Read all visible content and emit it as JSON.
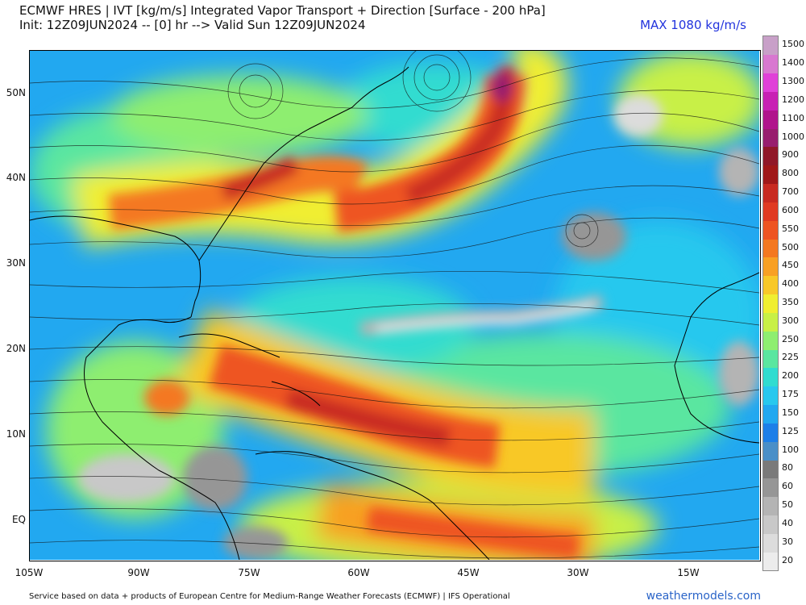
{
  "header": {
    "title_line1": "ECMWF HRES | IVT [kg/m/s] Integrated Vapor Transport + Direction [Surface - 200 hPa]",
    "title_line2": "Init: 12Z09JUN2024 -- [0] hr --> Valid Sun 12Z09JUN2024",
    "max_label": "MAX 1080 kg/m/s"
  },
  "map": {
    "lat_labels": [
      "50N",
      "40N",
      "30N",
      "20N",
      "10N",
      "EQ"
    ],
    "lat_values": [
      50,
      40,
      30,
      20,
      10,
      0
    ],
    "lon_labels": [
      "105W",
      "90W",
      "75W",
      "60W",
      "45W",
      "30W",
      "15W"
    ],
    "lon_values": [
      -105,
      -90,
      -75,
      -60,
      -45,
      -30,
      -15
    ],
    "extent": {
      "lon_min": -105,
      "lon_max": -5,
      "lat_min": -5,
      "lat_max": 55
    }
  },
  "colorbar": {
    "levels": [
      "20",
      "30",
      "40",
      "50",
      "60",
      "80",
      "100",
      "125",
      "150",
      "175",
      "200",
      "225",
      "250",
      "300",
      "350",
      "400",
      "450",
      "500",
      "550",
      "600",
      "700",
      "800",
      "900",
      "1000",
      "1100",
      "1200",
      "1300",
      "1400",
      "1500"
    ],
    "colors": [
      "#ececec",
      "#dcdcdc",
      "#c8c8c8",
      "#b4b4b4",
      "#969696",
      "#7a7a7a",
      "#4a8fc8",
      "#1e7fe8",
      "#22a8f0",
      "#28c8ee",
      "#30dcd0",
      "#5ae6a0",
      "#8eee70",
      "#c8f046",
      "#f0ee30",
      "#f8c828",
      "#f8a024",
      "#f47820",
      "#ee5422",
      "#e03a22",
      "#c82a20",
      "#a01818",
      "#901828",
      "#981e6e",
      "#b0148c",
      "#c820b4",
      "#e040d8",
      "#d878d0",
      "#c8a0c8"
    ]
  },
  "footer": {
    "credit": "Service based on data + products of European Centre for Medium-Range Weather Forecasts (ECMWF) | IFS Operational",
    "brand": "weathermodels.com"
  }
}
